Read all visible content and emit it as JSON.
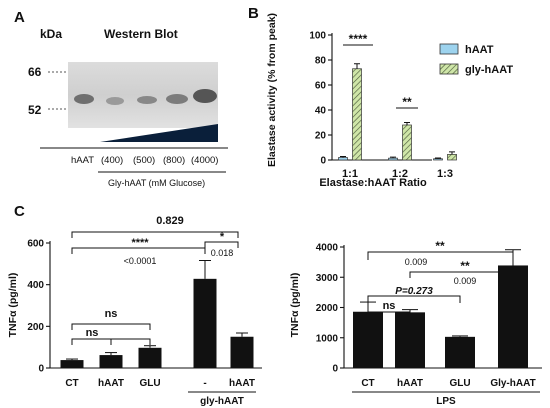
{
  "panels": {
    "A": "A",
    "B": "B",
    "C": "C"
  },
  "panel_a": {
    "title": "Western Blot",
    "unit_label": "kDa",
    "markers": [
      "66",
      "52"
    ],
    "lane_labels": [
      "hAAT",
      "(400)",
      "(500)",
      "(800)",
      "(4000)"
    ],
    "group_label": "Gly-hAAT (mM Glucose)"
  },
  "chart_data": [
    {
      "type": "bar",
      "panel": "B",
      "categories": [
        "1:1",
        "1:2",
        "1:3"
      ],
      "series": [
        {
          "name": "hAAT",
          "values": [
            2,
            1.5,
            1
          ],
          "errors": [
            0.8,
            0.8,
            0.6
          ],
          "color": "#9dd3ee"
        },
        {
          "name": "gly-hAAT",
          "values": [
            73,
            28,
            4.5
          ],
          "errors": [
            4,
            2,
            2
          ],
          "color": "#cfe6a8",
          "pattern": "hatch"
        }
      ],
      "xlabel": "Elastase:hAAT Ratio",
      "ylabel": "Elastase activity (% from peak)",
      "ylim": [
        0,
        100
      ],
      "yticks": [
        0,
        20,
        40,
        60,
        80,
        100
      ],
      "legend": "top-right",
      "annotations": [
        "****",
        "**"
      ]
    },
    {
      "type": "bar",
      "panel": "C-left",
      "categories": [
        "CT",
        "hAAT",
        "GLU",
        "-",
        "hAAT"
      ],
      "values": [
        38,
        62,
        97,
        428,
        150
      ],
      "errors": [
        5,
        12,
        10,
        88,
        18
      ],
      "group_label": "gly-hAAT",
      "ylabel": "TNFα (pg/ml)",
      "ylim": [
        0,
        600
      ],
      "yticks": [
        0,
        200,
        400,
        600
      ],
      "annotations": [
        "0.829",
        "****",
        "<0.0001",
        "*",
        "0.018",
        "ns",
        "ns",
        "ns"
      ]
    },
    {
      "type": "bar",
      "panel": "C-right",
      "categories": [
        "CT",
        "hAAT",
        "GLU",
        "Gly-hAAT"
      ],
      "values": [
        1860,
        1840,
        1030,
        3390
      ],
      "errors": [
        320,
        90,
        30,
        520
      ],
      "group_label": "LPS",
      "ylabel": "TNFα (pg/ml)",
      "ylim": [
        0,
        4000
      ],
      "yticks": [
        0,
        1000,
        2000,
        3000,
        4000
      ],
      "annotations": [
        "**",
        "0.009",
        "**",
        "0.009",
        "P=0.273",
        "ns"
      ]
    }
  ]
}
